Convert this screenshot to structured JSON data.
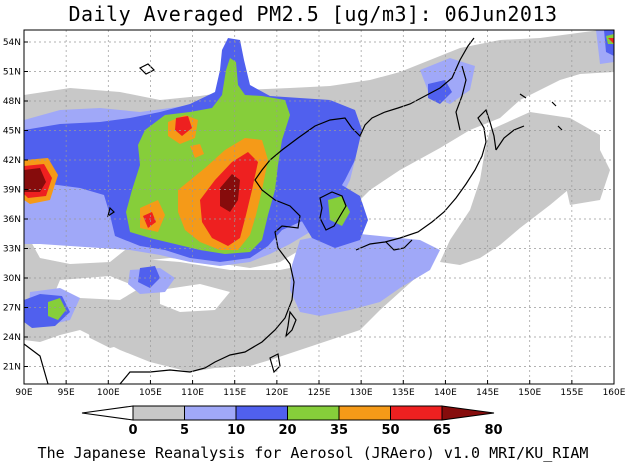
{
  "title": "Daily Averaged PM2.5 [ug/m3]: 06Jun2013",
  "footer": "The Japanese Reanalysis for Aerosol (JRAero) v1.0 MRI/KU_RIAM",
  "lat_labels": [
    "54N",
    "51N",
    "48N",
    "45N",
    "42N",
    "39N",
    "36N",
    "33N",
    "30N",
    "27N",
    "24N",
    "21N"
  ],
  "lon_labels": [
    "90E",
    "95E",
    "100E",
    "105E",
    "110E",
    "115E",
    "120E",
    "125E",
    "130E",
    "135E",
    "140E",
    "145E",
    "150E",
    "155E",
    "160E"
  ],
  "colorbar": {
    "levels": [
      "0",
      "5",
      "10",
      "20",
      "35",
      "50",
      "65",
      "80"
    ],
    "colors": [
      "#ffffff",
      "#c8c8c8",
      "#a0a8f8",
      "#5060ee",
      "#86ce3a",
      "#f59a18",
      "#ee2020",
      "#860c0c"
    ]
  },
  "palette": {
    "cat0": "#ffffff",
    "cat1": "#c8c8c8",
    "cat2": "#a0a8f8",
    "cat3": "#5060ee",
    "cat4": "#86ce3a",
    "cat5": "#f59a18",
    "cat6": "#ee2020",
    "cat7": "#860c0c"
  }
}
